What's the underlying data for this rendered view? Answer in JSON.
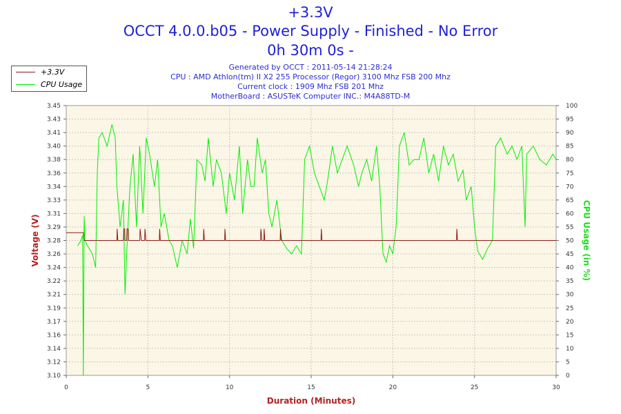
{
  "titles": [
    "+3.3V",
    "OCCT 4.0.0.b05 - Power Supply - Finished - No Error",
    "0h 30m 0s -"
  ],
  "info_lines": [
    "Generated by OCCT : 2011-05-14 21:28:24",
    "CPU : AMD Athlon(tm) II X2 255 Processor (Regor) 3100 Mhz FSB 200 Mhz",
    "Current clock : 1909 Mhz FSB 201 Mhz",
    "MotherBoard : ASUSTeK Computer INC.: M4A88TD-M"
  ],
  "colors": {
    "voltage": "#8b1a1a",
    "cpu": "#00ee00",
    "plot_bg": "#fbf6e6",
    "grid": "#c8c8c8",
    "title": "#1f1fd6"
  },
  "chart_data": {
    "type": "line",
    "xlabel": "Duration (Minutes)",
    "ylabel": "Voltage (V)",
    "y2label": "CPU Usage (in %)",
    "xlim": [
      0,
      30
    ],
    "ylim": [
      3.1,
      3.45
    ],
    "y2lim": [
      0,
      100
    ],
    "x_ticks": [
      "0",
      "5",
      "10",
      "15",
      "20",
      "25",
      "30"
    ],
    "y_ticks": [
      "3.10",
      "3.12",
      "3.14",
      "3.16",
      "3.17",
      "3.19",
      "3.21",
      "3.22",
      "3.24",
      "3.26",
      "3.28",
      "3.29",
      "3.31",
      "3.33",
      "3.34",
      "3.36",
      "3.38",
      "3.40",
      "3.41",
      "3.43",
      "3.45"
    ],
    "y2_ticks": [
      "0",
      "5",
      "10",
      "15",
      "20",
      "25",
      "30",
      "35",
      "40",
      "45",
      "50",
      "55",
      "60",
      "65",
      "70",
      "75",
      "80",
      "85",
      "90",
      "95",
      "100"
    ],
    "legend": {
      "placement": "top-left"
    },
    "series": [
      {
        "name": "+3.3V",
        "axis": "left",
        "points": [
          [
            0,
            3.285
          ],
          [
            1.05,
            3.285
          ],
          [
            1.1,
            3.275
          ],
          [
            3.1,
            3.275
          ],
          [
            3.12,
            3.29
          ],
          [
            3.16,
            3.275
          ],
          [
            3.5,
            3.275
          ],
          [
            3.52,
            3.29
          ],
          [
            3.58,
            3.29
          ],
          [
            3.6,
            3.275
          ],
          [
            3.7,
            3.275
          ],
          [
            3.72,
            3.29
          ],
          [
            3.8,
            3.29
          ],
          [
            3.82,
            3.275
          ],
          [
            4.5,
            3.275
          ],
          [
            4.52,
            3.29
          ],
          [
            4.6,
            3.275
          ],
          [
            4.8,
            3.275
          ],
          [
            4.82,
            3.29
          ],
          [
            4.88,
            3.275
          ],
          [
            5.7,
            3.275
          ],
          [
            5.72,
            3.29
          ],
          [
            5.76,
            3.275
          ],
          [
            8.4,
            3.275
          ],
          [
            8.42,
            3.29
          ],
          [
            8.46,
            3.275
          ],
          [
            9.7,
            3.275
          ],
          [
            9.72,
            3.29
          ],
          [
            9.76,
            3.275
          ],
          [
            11.9,
            3.275
          ],
          [
            11.92,
            3.29
          ],
          [
            11.98,
            3.275
          ],
          [
            12.1,
            3.275
          ],
          [
            12.12,
            3.29
          ],
          [
            12.16,
            3.275
          ],
          [
            13.1,
            3.275
          ],
          [
            13.12,
            3.29
          ],
          [
            13.16,
            3.275
          ],
          [
            15.6,
            3.275
          ],
          [
            15.62,
            3.29
          ],
          [
            15.66,
            3.275
          ],
          [
            23.9,
            3.275
          ],
          [
            23.92,
            3.29
          ],
          [
            23.96,
            3.275
          ],
          [
            30,
            3.275
          ]
        ]
      },
      {
        "name": "CPU Usage",
        "axis": "right",
        "points": [
          [
            0.7,
            48
          ],
          [
            0.9,
            50
          ],
          [
            1.0,
            52
          ],
          [
            1.05,
            0
          ],
          [
            1.1,
            59
          ],
          [
            1.15,
            50
          ],
          [
            1.3,
            48
          ],
          [
            1.6,
            45
          ],
          [
            1.8,
            40
          ],
          [
            1.9,
            75
          ],
          [
            2.0,
            88
          ],
          [
            2.2,
            90
          ],
          [
            2.5,
            85
          ],
          [
            2.8,
            93
          ],
          [
            3.0,
            88
          ],
          [
            3.1,
            70
          ],
          [
            3.3,
            55
          ],
          [
            3.5,
            65
          ],
          [
            3.6,
            30
          ],
          [
            3.7,
            45
          ],
          [
            3.9,
            70
          ],
          [
            4.1,
            82
          ],
          [
            4.3,
            55
          ],
          [
            4.5,
            85
          ],
          [
            4.7,
            60
          ],
          [
            4.9,
            88
          ],
          [
            5.1,
            82
          ],
          [
            5.4,
            70
          ],
          [
            5.6,
            80
          ],
          [
            5.8,
            55
          ],
          [
            6.0,
            60
          ],
          [
            6.3,
            50
          ],
          [
            6.5,
            48
          ],
          [
            6.8,
            40
          ],
          [
            7.1,
            50
          ],
          [
            7.4,
            45
          ],
          [
            7.6,
            58
          ],
          [
            7.8,
            47
          ],
          [
            8.0,
            80
          ],
          [
            8.3,
            78
          ],
          [
            8.5,
            72
          ],
          [
            8.7,
            88
          ],
          [
            9.0,
            70
          ],
          [
            9.2,
            80
          ],
          [
            9.5,
            75
          ],
          [
            9.8,
            60
          ],
          [
            10.0,
            75
          ],
          [
            10.3,
            65
          ],
          [
            10.6,
            85
          ],
          [
            10.8,
            60
          ],
          [
            11.1,
            80
          ],
          [
            11.3,
            70
          ],
          [
            11.5,
            70
          ],
          [
            11.7,
            88
          ],
          [
            12.0,
            75
          ],
          [
            12.2,
            80
          ],
          [
            12.4,
            60
          ],
          [
            12.6,
            55
          ],
          [
            12.9,
            65
          ],
          [
            13.2,
            50
          ],
          [
            13.5,
            47
          ],
          [
            13.8,
            45
          ],
          [
            14.1,
            48
          ],
          [
            14.4,
            45
          ],
          [
            14.6,
            80
          ],
          [
            14.9,
            85
          ],
          [
            15.2,
            75
          ],
          [
            15.5,
            70
          ],
          [
            15.8,
            65
          ],
          [
            16.0,
            72
          ],
          [
            16.3,
            85
          ],
          [
            16.6,
            75
          ],
          [
            16.9,
            80
          ],
          [
            17.2,
            85
          ],
          [
            17.6,
            78
          ],
          [
            17.9,
            70
          ],
          [
            18.1,
            75
          ],
          [
            18.4,
            80
          ],
          [
            18.7,
            72
          ],
          [
            19.0,
            85
          ],
          [
            19.2,
            70
          ],
          [
            19.4,
            45
          ],
          [
            19.6,
            42
          ],
          [
            19.8,
            48
          ],
          [
            20.0,
            45
          ],
          [
            20.2,
            55
          ],
          [
            20.4,
            85
          ],
          [
            20.7,
            90
          ],
          [
            21.0,
            78
          ],
          [
            21.3,
            80
          ],
          [
            21.6,
            80
          ],
          [
            21.9,
            88
          ],
          [
            22.2,
            75
          ],
          [
            22.5,
            82
          ],
          [
            22.8,
            72
          ],
          [
            23.1,
            85
          ],
          [
            23.4,
            78
          ],
          [
            23.7,
            82
          ],
          [
            24.0,
            72
          ],
          [
            24.3,
            76
          ],
          [
            24.5,
            65
          ],
          [
            24.8,
            70
          ],
          [
            25.0,
            55
          ],
          [
            25.2,
            46
          ],
          [
            25.5,
            43
          ],
          [
            25.8,
            47
          ],
          [
            26.1,
            50
          ],
          [
            26.3,
            85
          ],
          [
            26.6,
            88
          ],
          [
            27.0,
            82
          ],
          [
            27.3,
            85
          ],
          [
            27.6,
            80
          ],
          [
            27.9,
            85
          ],
          [
            28.1,
            55
          ],
          [
            28.2,
            82
          ],
          [
            28.6,
            85
          ],
          [
            29.0,
            80
          ],
          [
            29.4,
            78
          ],
          [
            29.8,
            82
          ],
          [
            30,
            80
          ]
        ]
      }
    ]
  }
}
